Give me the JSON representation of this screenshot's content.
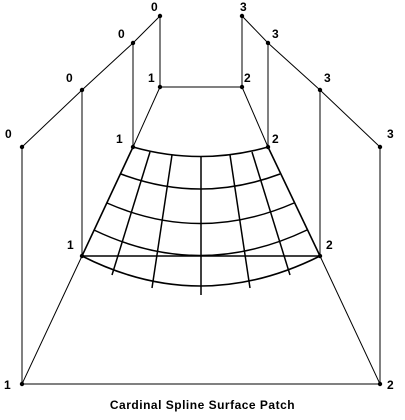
{
  "caption": "Cardinal Spline Surface Patch",
  "labels": {
    "l_0a": "0",
    "l_0b": "0",
    "l_0c": "0",
    "l_0d": "0",
    "l_1a": "1",
    "l_1b": "1",
    "l_1c": "1",
    "l_1d": "1",
    "l_2a": "2",
    "l_2b": "2",
    "l_2c": "2",
    "l_2d": "2",
    "l_3a": "3",
    "l_3b": "3",
    "l_3c": "3",
    "l_3d": "3"
  }
}
